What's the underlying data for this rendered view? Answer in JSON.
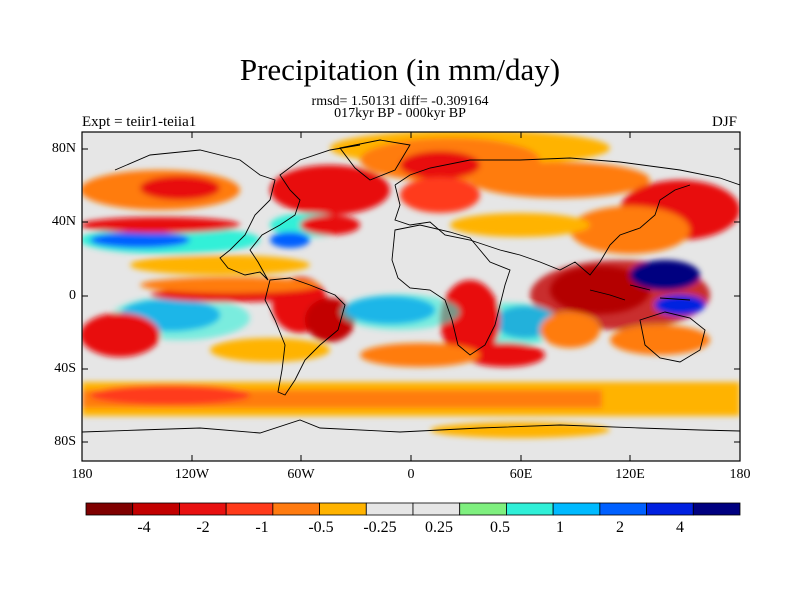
{
  "header": {
    "title": "Precipitation (in mm/day)",
    "stats": "rmsd= 1.50131 diff= -0.309164",
    "period": "017kyr BP - 000kyr BP",
    "experiment": "Expt = teiir1-teiia1",
    "season": "DJF"
  },
  "map": {
    "projection": "cylindrical-equidistant",
    "lon_range": [
      -180,
      180
    ],
    "lat_range": [
      -90,
      90
    ],
    "lat_ticks": [
      {
        "value": 80,
        "label": "80N"
      },
      {
        "value": 40,
        "label": "40N"
      },
      {
        "value": 0,
        "label": "0"
      },
      {
        "value": -40,
        "label": "40S"
      },
      {
        "value": -80,
        "label": "80S"
      }
    ],
    "lon_ticks": [
      {
        "value": -180,
        "label": "180"
      },
      {
        "value": -120,
        "label": "120W"
      },
      {
        "value": -60,
        "label": "60W"
      },
      {
        "value": 0,
        "label": "0"
      },
      {
        "value": 60,
        "label": "60E"
      },
      {
        "value": 120,
        "label": "120E"
      },
      {
        "value": 180,
        "label": "180"
      }
    ],
    "background_color": "#e6e6e6",
    "coastline_color": "#000000"
  },
  "colorbar": {
    "colors": [
      "#7f0000",
      "#c20000",
      "#e81010",
      "#ff3a1a",
      "#ff7b10",
      "#ffb300",
      "#e6e6e6",
      "#e6e6e6",
      "#7ff07f",
      "#30f0d8",
      "#00baff",
      "#0060ff",
      "#0020e0",
      "#000080"
    ],
    "labels": [
      "-4",
      "-2",
      "-1",
      "-0.5",
      "-0.25",
      "0.25",
      "0.5",
      "1",
      "2",
      "4"
    ]
  }
}
